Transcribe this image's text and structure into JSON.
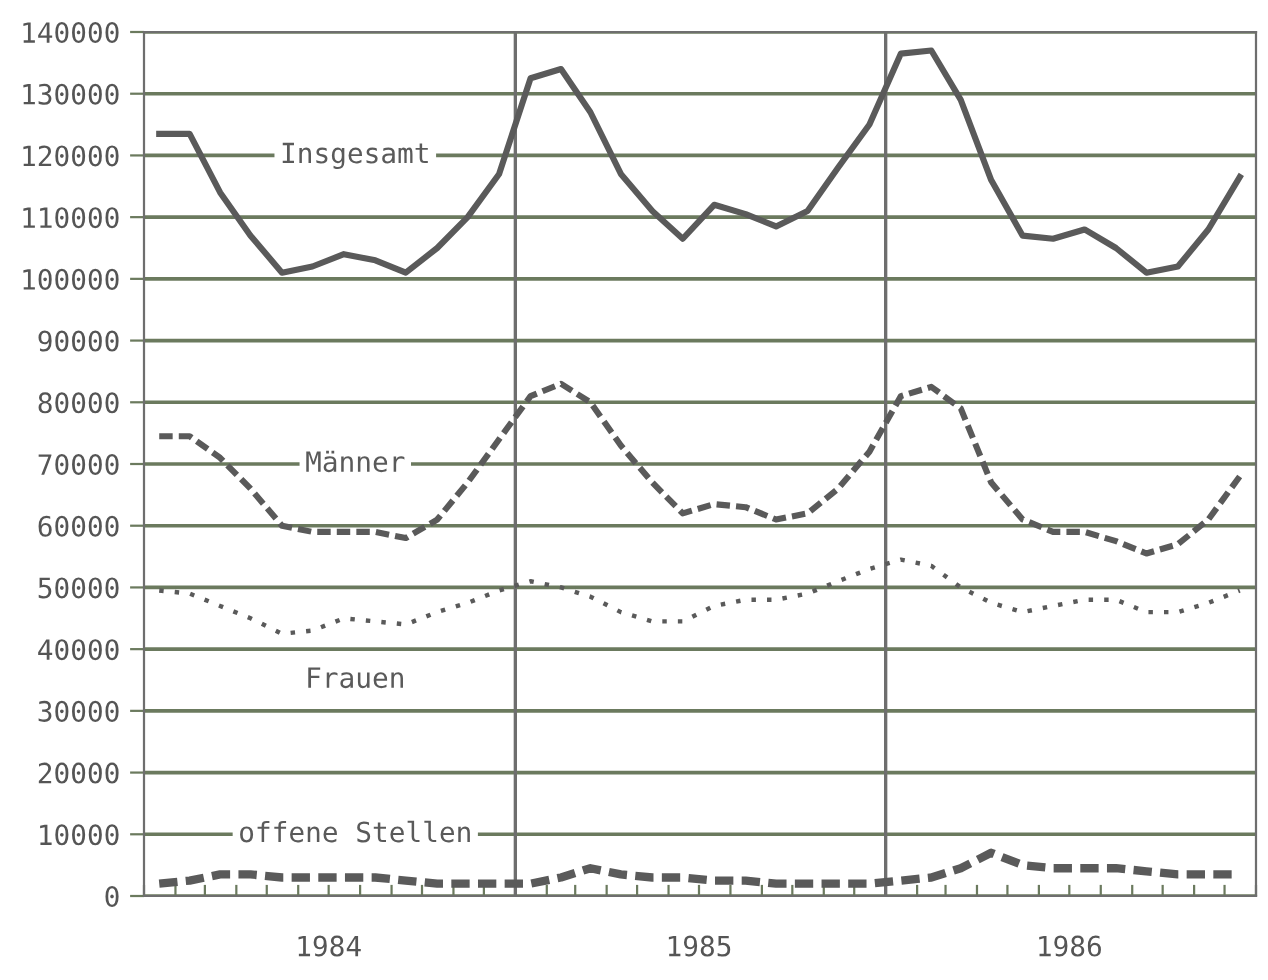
{
  "chart_data": {
    "type": "line",
    "x": [
      "1984-01-16",
      "1984-02-15",
      "1984-03-16",
      "1984-04-15",
      "1984-05-16",
      "1984-06-15",
      "1984-07-16",
      "1984-08-16",
      "1984-09-15",
      "1984-10-16",
      "1984-11-15",
      "1984-12-16",
      "1985-01-16",
      "1985-02-15",
      "1985-03-16",
      "1985-04-15",
      "1985-05-16",
      "1985-06-15",
      "1985-07-16",
      "1985-08-16",
      "1985-09-15",
      "1985-10-16",
      "1985-11-15",
      "1985-12-16",
      "1986-01-16",
      "1986-02-15",
      "1986-03-16",
      "1986-04-15",
      "1986-05-16",
      "1986-06-15",
      "1986-07-16",
      "1986-08-16",
      "1986-09-15",
      "1986-10-16",
      "1986-11-15",
      "1986-12-16"
    ],
    "series": [
      {
        "name": "Insgesamt",
        "color": "#5a5a5a",
        "line_style": "solid",
        "values": [
          123500,
          123500,
          114000,
          107000,
          101000,
          102000,
          104000,
          103000,
          101000,
          105000,
          110000,
          117000,
          132500,
          134000,
          127000,
          117000,
          111000,
          106500,
          112000,
          110500,
          108500,
          111000,
          118000,
          125000,
          136500,
          137000,
          129000,
          116000,
          107000,
          106500,
          108000,
          105000,
          101000,
          102000,
          108000,
          116500
        ]
      },
      {
        "name": "Männer",
        "color": "#5a5a5a",
        "line_style": "dashed",
        "values": [
          74500,
          74500,
          71000,
          66000,
          60000,
          59000,
          59000,
          59000,
          58000,
          61000,
          67000,
          74000,
          81000,
          83000,
          80000,
          73000,
          67000,
          62000,
          63500,
          63000,
          61000,
          62000,
          66000,
          72000,
          81000,
          82500,
          79000,
          67000,
          61000,
          59000,
          59000,
          57500,
          55500,
          57000,
          61000,
          68000
        ]
      },
      {
        "name": "Frauen",
        "color": "#5a5a5a",
        "line_style": "dotted",
        "values": [
          49500,
          49000,
          47000,
          45000,
          42500,
          43000,
          45000,
          44500,
          44000,
          46000,
          47500,
          49500,
          51000,
          50000,
          48500,
          46000,
          44500,
          44500,
          47000,
          48000,
          48000,
          49000,
          51000,
          53000,
          54500,
          53500,
          50000,
          47500,
          46000,
          47000,
          48000,
          48000,
          46000,
          46000,
          47500,
          49500
        ]
      },
      {
        "name": "offene Stellen",
        "color": "#5a5a5a",
        "line_style": "dashed",
        "values": [
          2000,
          2500,
          3500,
          3500,
          3000,
          3000,
          3000,
          3000,
          2500,
          2000,
          2000,
          2000,
          2000,
          3000,
          4500,
          3500,
          3000,
          3000,
          2500,
          2500,
          2000,
          2000,
          2000,
          2000,
          2500,
          3000,
          4500,
          7000,
          5000,
          4500,
          4500,
          4500,
          4000,
          3500,
          3500,
          3500
        ]
      }
    ],
    "ylim": [
      0,
      140000
    ],
    "yticks": [
      0,
      10000,
      20000,
      30000,
      40000,
      50000,
      60000,
      70000,
      80000,
      90000,
      100000,
      110000,
      120000,
      130000,
      140000
    ],
    "xlim": [
      "1984-01-01",
      "1987-01-01"
    ],
    "xticks": [
      {
        "value": "1984-01-01",
        "label": null
      },
      {
        "value": "1984-02-01",
        "label": null
      },
      {
        "value": "1984-03-01",
        "label": null
      },
      {
        "value": "1984-04-01",
        "label": null
      },
      {
        "value": "1984-05-01",
        "label": null
      },
      {
        "value": "1984-06-01",
        "label": null
      },
      {
        "value": "1984-07-01",
        "label": "1984"
      },
      {
        "value": "1984-08-01",
        "label": null
      },
      {
        "value": "1984-09-01",
        "label": null
      },
      {
        "value": "1984-10-01",
        "label": null
      },
      {
        "value": "1984-11-01",
        "label": null
      },
      {
        "value": "1984-12-01",
        "label": null
      },
      {
        "value": "1985-01-01",
        "label": null
      },
      {
        "value": "1985-02-01",
        "label": null
      },
      {
        "value": "1985-03-01",
        "label": null
      },
      {
        "value": "1985-04-01",
        "label": null
      },
      {
        "value": "1985-05-01",
        "label": null
      },
      {
        "value": "1985-06-01",
        "label": null
      },
      {
        "value": "1985-07-01",
        "label": "1985"
      },
      {
        "value": "1985-08-01",
        "label": null
      },
      {
        "value": "1985-09-01",
        "label": null
      },
      {
        "value": "1985-10-01",
        "label": null
      },
      {
        "value": "1985-11-01",
        "label": null
      },
      {
        "value": "1985-12-01",
        "label": null
      },
      {
        "value": "1986-01-01",
        "label": null
      },
      {
        "value": "1986-02-01",
        "label": null
      },
      {
        "value": "1986-03-01",
        "label": null
      },
      {
        "value": "1986-04-01",
        "label": null
      },
      {
        "value": "1986-05-01",
        "label": null
      },
      {
        "value": "1986-06-01",
        "label": null
      },
      {
        "value": "1986-07-01",
        "label": "1986"
      },
      {
        "value": "1986-08-01",
        "label": null
      },
      {
        "value": "1986-09-01",
        "label": null
      },
      {
        "value": "1986-10-01",
        "label": null
      },
      {
        "value": "1986-11-01",
        "label": null
      },
      {
        "value": "1986-12-01",
        "label": null
      },
      {
        "value": "1987-01-01",
        "label": null
      }
    ],
    "ref_lines": [
      {
        "axis": "x",
        "value": "1985-01-01",
        "color": "#6e6e6e"
      },
      {
        "axis": "x",
        "value": "1986-01-01",
        "color": "#6e6e6e"
      }
    ],
    "grid": "y",
    "marker": "none",
    "legend": false
  }
}
